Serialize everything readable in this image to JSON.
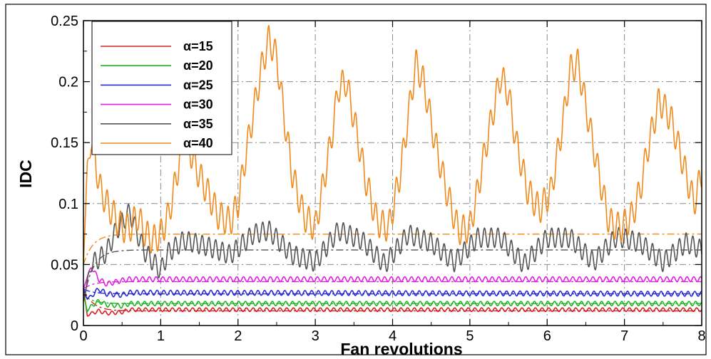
{
  "chart_data": {
    "type": "line",
    "xlabel": "Fan revolutions",
    "ylabel": "IDC",
    "xlim": [
      0,
      8
    ],
    "ylim": [
      0,
      0.25
    ],
    "x_ticks": [
      0,
      1,
      2,
      3,
      4,
      5,
      6,
      7,
      8
    ],
    "x_tick_labels": [
      "0",
      "1",
      "2",
      "3",
      "4",
      "5",
      "6",
      "7",
      "8"
    ],
    "y_ticks": [
      0,
      0.05,
      0.1,
      0.15,
      0.2,
      0.25
    ],
    "y_tick_labels": [
      "0",
      "0.05",
      "0.1",
      "0.15",
      "0.2",
      "0.25"
    ],
    "grid": true,
    "legend_position": "top-left",
    "series": [
      {
        "name": "α=15",
        "color": "#d62222",
        "mean": 0.012,
        "x": [
          0.0,
          0.05,
          0.1,
          0.2,
          0.3,
          0.5,
          0.6,
          8.0
        ],
        "values": [
          0.03,
          0.008,
          0.01,
          0.012,
          0.01,
          0.011,
          0.013,
          0.013
        ],
        "oscillation": 0.0015
      },
      {
        "name": "α=20",
        "color": "#22b522",
        "mean": 0.018,
        "x": [
          0.0,
          0.05,
          0.1,
          0.2,
          0.3,
          0.5,
          0.6,
          8.0
        ],
        "values": [
          0.025,
          0.012,
          0.016,
          0.02,
          0.017,
          0.016,
          0.018,
          0.018
        ],
        "oscillation": 0.0018
      },
      {
        "name": "α=25",
        "color": "#2a2ad6",
        "mean": 0.026,
        "x": [
          0.0,
          0.05,
          0.1,
          0.2,
          0.3,
          0.5,
          0.6,
          8.0
        ],
        "values": [
          0.03,
          0.022,
          0.024,
          0.03,
          0.026,
          0.025,
          0.027,
          0.026
        ],
        "oscillation": 0.002
      },
      {
        "name": "α=30",
        "color": "#e020e0",
        "mean": 0.036,
        "x": [
          0.0,
          0.05,
          0.1,
          0.2,
          0.3,
          0.5,
          0.6,
          8.0
        ],
        "values": [
          0.03,
          0.04,
          0.048,
          0.038,
          0.034,
          0.037,
          0.038,
          0.038
        ],
        "oscillation": 0.002
      },
      {
        "name": "α=35",
        "color": "#555555",
        "mean": 0.062,
        "x": [
          0.0,
          0.1,
          0.2,
          0.3,
          0.4,
          0.5,
          0.6,
          0.7,
          0.8,
          1.0,
          1.1,
          1.3,
          1.6,
          1.9,
          2.2,
          2.4,
          2.7,
          3.0,
          3.3,
          3.6,
          3.9,
          4.2,
          4.5,
          4.8,
          5.1,
          5.4,
          5.7,
          6.0,
          6.3,
          6.6,
          6.9,
          7.2,
          7.5,
          7.8,
          8.0
        ],
        "values": [
          0.02,
          0.05,
          0.055,
          0.06,
          0.075,
          0.085,
          0.093,
          0.075,
          0.06,
          0.045,
          0.06,
          0.07,
          0.065,
          0.058,
          0.075,
          0.078,
          0.058,
          0.052,
          0.078,
          0.07,
          0.05,
          0.075,
          0.068,
          0.052,
          0.072,
          0.072,
          0.05,
          0.072,
          0.072,
          0.052,
          0.073,
          0.068,
          0.052,
          0.068,
          0.062
        ],
        "oscillation": 0.008
      },
      {
        "name": "α=40",
        "color": "#f08a1c",
        "mean": 0.075,
        "x": [
          0.0,
          0.05,
          0.1,
          0.15,
          0.2,
          0.3,
          0.4,
          0.5,
          0.6,
          0.7,
          0.8,
          0.9,
          1.0,
          1.1,
          1.2,
          1.3,
          1.45,
          1.6,
          1.75,
          1.9,
          2.0,
          2.1,
          2.2,
          2.3,
          2.4,
          2.5,
          2.6,
          2.7,
          2.85,
          3.0,
          3.1,
          3.2,
          3.3,
          3.4,
          3.5,
          3.65,
          3.8,
          3.95,
          4.1,
          4.2,
          4.3,
          4.4,
          4.55,
          4.7,
          4.85,
          5.0,
          5.1,
          5.2,
          5.3,
          5.4,
          5.5,
          5.6,
          5.75,
          5.9,
          6.05,
          6.2,
          6.3,
          6.4,
          6.5,
          6.65,
          6.8,
          6.95,
          7.1,
          7.2,
          7.3,
          7.45,
          7.6,
          7.75,
          7.9,
          8.0
        ],
        "values": [
          0.05,
          0.13,
          0.15,
          0.14,
          0.115,
          0.1,
          0.09,
          0.08,
          0.08,
          0.09,
          0.075,
          0.07,
          0.075,
          0.09,
          0.12,
          0.16,
          0.13,
          0.11,
          0.09,
          0.085,
          0.1,
          0.14,
          0.175,
          0.21,
          0.235,
          0.22,
          0.17,
          0.125,
          0.09,
          0.08,
          0.115,
          0.15,
          0.195,
          0.2,
          0.17,
          0.12,
          0.085,
          0.08,
          0.125,
          0.17,
          0.215,
          0.2,
          0.15,
          0.11,
          0.078,
          0.08,
          0.11,
          0.145,
          0.175,
          0.205,
          0.19,
          0.15,
          0.11,
          0.095,
          0.11,
          0.165,
          0.21,
          0.215,
          0.18,
          0.13,
          0.085,
          0.08,
          0.09,
          0.11,
          0.145,
          0.185,
          0.17,
          0.135,
          0.1,
          0.125
        ],
        "oscillation": 0.012
      }
    ]
  }
}
